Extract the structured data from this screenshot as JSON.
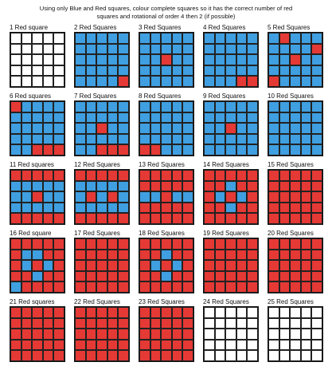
{
  "instructions": {
    "line1": "Using only Blue and Red squares, colour complete squares so it has the correct number of red",
    "line2_before": "squares and rotational of order 4 then 2 (if possible)"
  },
  "colors": {
    "blue": "#3f9fe0",
    "red": "#e53935",
    "empty": "#ffffff"
  },
  "squares": [
    {
      "label": "1 Red square",
      "grid": [
        "WWWWW",
        "WWWWW",
        "WWWWW",
        "WWWWW",
        "WWWWW"
      ]
    },
    {
      "label": "2 Red Squares",
      "grid": [
        "BBBBB",
        "BBBBB",
        "BBBBB",
        "BBBBB",
        "BBBBR"
      ]
    },
    {
      "label": "3 Red Squares",
      "grid": [
        "BBBBB",
        "BBBBB",
        "BBRBB",
        "BBBBB",
        "BBBBB"
      ]
    },
    {
      "label": "4 Red Squares",
      "grid": [
        "BBBBB",
        "BBBBB",
        "BBBBB",
        "BBBBB",
        "BBBRR"
      ]
    },
    {
      "label": "5 Red Squares",
      "grid": [
        "BRBBB",
        "BBBBR",
        "BBRBB",
        "BBBBB",
        "RBBBB"
      ]
    },
    {
      "label": "6 Red squares",
      "grid": [
        "RBBBB",
        "BBBBB",
        "BBBBB",
        "BBBBB",
        "BBRRR"
      ]
    },
    {
      "label": "7 Red Squares",
      "grid": [
        "BBBBB",
        "BBBBB",
        "BBRBB",
        "BBBBB",
        "BBRRR"
      ]
    },
    {
      "label": "8 Red Squares",
      "grid": [
        "BBBBB",
        "BBBBB",
        "BBBBB",
        "BBBBB",
        "RRBBB"
      ]
    },
    {
      "label": "9 Red Squares",
      "grid": [
        "BBBBB",
        "BBBBB",
        "BBRBB",
        "BBBBB",
        "BBBBB"
      ]
    },
    {
      "label": "10 Red Squares",
      "grid": [
        "BBBBB",
        "BBBBB",
        "BBBBB",
        "BBBBB",
        "BBBBB"
      ]
    },
    {
      "label": "11 Red squares",
      "grid": [
        "RRRRR",
        "BBBBB",
        "BBRBB",
        "BBBBB",
        "RRRRR"
      ]
    },
    {
      "label": "12 Red Squares",
      "grid": [
        "RRRRR",
        "BBBBB",
        "BRBRB",
        "BBBBB",
        "RRRRR"
      ]
    },
    {
      "label": "13 Red Squares",
      "grid": [
        "RRRRR",
        "RRRRR",
        "BBRBB",
        "RRRRR",
        "RRRRR"
      ]
    },
    {
      "label": "14 Red Squares",
      "grid": [
        "RRRRR",
        "RRBRR",
        "RBRBR",
        "RRBRR",
        "RRRRR"
      ]
    },
    {
      "label": "15 Red Squares",
      "grid": [
        "RRRRR",
        "RRRRR",
        "RRRRR",
        "RRRRR",
        "RRRRR"
      ]
    },
    {
      "label": "16 Red square",
      "grid": [
        "RRRRR",
        "RBBRR",
        "RBRBR",
        "RRBRR",
        "BRRRR"
      ]
    },
    {
      "label": "17 Red Squares",
      "grid": [
        "RRRRR",
        "RRRRR",
        "RRRRR",
        "RRRRR",
        "RRRRR"
      ]
    },
    {
      "label": "18 Red Squares",
      "grid": [
        "RRRRR",
        "RRBRR",
        "RBRBR",
        "RRBRR",
        "RRRRR"
      ]
    },
    {
      "label": "19 Red Squares",
      "grid": [
        "RRRRR",
        "RRRRR",
        "RRRRR",
        "RRRRR",
        "RRRRR"
      ]
    },
    {
      "label": "20 Red Squares",
      "grid": [
        "RRRRR",
        "RRRRR",
        "RRRRR",
        "RRRRR",
        "RRRRR"
      ]
    },
    {
      "label": "21 Red squares",
      "grid": [
        "RRRRR",
        "RRRRR",
        "RRRRR",
        "RRRRR",
        "RRRRR"
      ]
    },
    {
      "label": "22 Red Squares",
      "grid": [
        "RRRRR",
        "RRRRR",
        "RRRRR",
        "RRRRR",
        "RRRRR"
      ]
    },
    {
      "label": "23 Red Squares",
      "grid": [
        "RRRRR",
        "RRRRR",
        "RRRRR",
        "RRRRR",
        "RRRRR"
      ]
    },
    {
      "label": "24 Red Squares",
      "grid": [
        "WWWWW",
        "WWWWW",
        "WWWWW",
        "WWWWW",
        "WWWWW"
      ]
    },
    {
      "label": "25 Red Squares",
      "grid": [
        "WWWWW",
        "WWWWW",
        "WWWWW",
        "WWWWW",
        "WWWWW"
      ]
    }
  ]
}
